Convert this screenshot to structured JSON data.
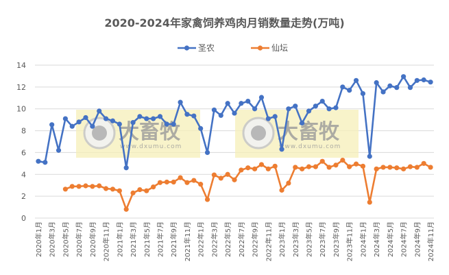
{
  "chart_data": {
    "type": "line",
    "title": "2020-2024年家禽饲养鸡肉月销数量走势(万吨)",
    "xlabel": "",
    "ylabel": "",
    "ylim": [
      0,
      14
    ],
    "yticks": [
      0,
      2,
      4,
      6,
      8,
      10,
      12,
      14
    ],
    "grid": true,
    "legend_position": "top",
    "x": [
      "2020年1月",
      "2020年2月",
      "2020年3月",
      "2020年4月",
      "2020年5月",
      "2020年6月",
      "2020年7月",
      "2020年8月",
      "2020年9月",
      "2020年10月",
      "2020年11月",
      "2020年12月",
      "2021年1月",
      "2021年2月",
      "2021年3月",
      "2021年4月",
      "2021年5月",
      "2021年6月",
      "2021年7月",
      "2021年8月",
      "2021年9月",
      "2021年10月",
      "2021年11月",
      "2021年12月",
      "2022年1月",
      "2022年2月",
      "2022年3月",
      "2022年4月",
      "2022年5月",
      "2022年6月",
      "2022年7月",
      "2022年8月",
      "2022年9月",
      "2022年10月",
      "2022年11月",
      "2022年12月",
      "2023年1月",
      "2023年2月",
      "2023年3月",
      "2023年4月",
      "2023年5月",
      "2023年6月",
      "2023年7月",
      "2023年8月",
      "2023年9月",
      "2023年10月",
      "2023年11月",
      "2023年12月",
      "2024年1月",
      "2024年2月",
      "2024年3月",
      "2024年4月",
      "2024年5月",
      "2024年6月",
      "2024年7月",
      "2024年8月",
      "2024年9月",
      "2024年10月",
      "2024年11月"
    ],
    "xtick_labels": [
      "2020年1月",
      "2020年3月",
      "2020年5月",
      "2020年7月",
      "2020年9月",
      "2020年11月",
      "2021年1月",
      "2021年3月",
      "2021年5月",
      "2021年7月",
      "2021年9月",
      "2021年11月",
      "2022年1月",
      "2022年3月",
      "2022年5月",
      "2022年7月",
      "2022年9月",
      "2022年11月",
      "2023年1月",
      "2023年3月",
      "2023年5月",
      "2023年7月",
      "2023年9月",
      "2023年11月",
      "2024年1月",
      "2024年3月",
      "2024年5月",
      "2024年7月",
      "2024年9月",
      "2024年11月"
    ],
    "series": [
      {
        "name": "圣农",
        "color": "#4472c4",
        "values": [
          5.2,
          5.1,
          8.55,
          6.2,
          9.1,
          8.4,
          8.8,
          9.2,
          8.4,
          9.8,
          9.1,
          8.9,
          8.6,
          4.6,
          8.75,
          9.3,
          9.1,
          9.1,
          9.3,
          8.6,
          8.6,
          10.6,
          9.5,
          9.35,
          8.2,
          6.0,
          9.9,
          9.4,
          10.5,
          9.6,
          10.5,
          10.7,
          10.0,
          11.05,
          9.1,
          9.3,
          6.3,
          10.0,
          10.25,
          8.7,
          9.8,
          10.25,
          10.7,
          10.0,
          10.1,
          12.0,
          11.7,
          12.6,
          11.4,
          5.65,
          12.4,
          11.55,
          12.1,
          11.95,
          12.95,
          11.95,
          12.6,
          12.65,
          12.45
        ]
      },
      {
        "name": "仙坛",
        "color": "#ed7d31",
        "values": [
          null,
          null,
          null,
          null,
          2.65,
          2.9,
          2.9,
          2.95,
          2.9,
          2.95,
          2.7,
          2.65,
          2.5,
          0.8,
          2.3,
          2.6,
          2.5,
          2.85,
          3.25,
          3.3,
          3.3,
          3.7,
          3.25,
          3.45,
          3.1,
          1.7,
          3.95,
          3.65,
          4.0,
          3.5,
          4.4,
          4.6,
          4.5,
          4.9,
          4.5,
          4.75,
          2.55,
          3.2,
          4.65,
          4.5,
          4.7,
          4.7,
          5.2,
          4.65,
          4.85,
          5.3,
          4.7,
          4.95,
          4.75,
          1.45,
          4.5,
          4.65,
          4.65,
          4.6,
          4.5,
          4.7,
          4.65,
          5.0,
          4.65
        ]
      }
    ]
  },
  "watermarks": [
    {
      "text": "大畜牧",
      "url": "www.dxumu.com"
    },
    {
      "text": "大畜牧",
      "url": "www.dxumu.com"
    }
  ]
}
